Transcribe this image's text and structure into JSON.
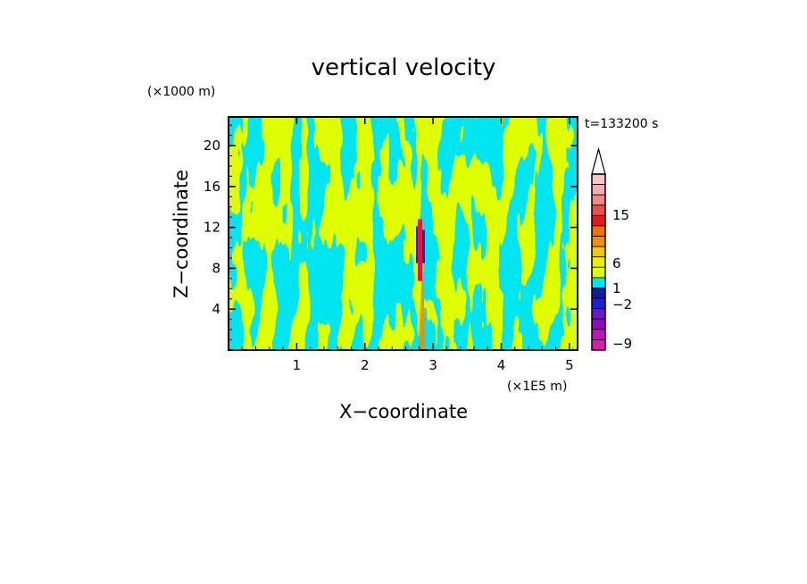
{
  "chart_data": {
    "type": "heatmap",
    "title": "vertical velocity",
    "xlabel": "X−coordinate",
    "ylabel": "Z−coordinate",
    "x_unit": "(×1E5 m)",
    "y_unit": "(×1000 m)",
    "time_label": "t=133200 s",
    "xlim": [
      0,
      5.12
    ],
    "ylim": [
      0,
      22.8
    ],
    "x_ticks": [
      1,
      2,
      3,
      4,
      5
    ],
    "y_ticks": [
      4,
      8,
      12,
      16,
      20
    ],
    "x_tick_labels": [
      "1",
      "2",
      "3",
      "4",
      "5"
    ],
    "y_tick_labels": [
      "4",
      "8",
      "12",
      "16",
      "20"
    ],
    "field_colors": {
      "positive": "#dfff00",
      "negative": "#00e5f0",
      "strong_negative": "#2020c8",
      "strong_positive": "#e8143c",
      "plume": "#f08c00"
    },
    "plume_x": 2.82,
    "plume_core": {
      "x": [
        2.75,
        2.88
      ],
      "z": [
        8.5,
        12.8
      ]
    },
    "colorbar": {
      "levels": [
        -9,
        -2,
        1,
        6,
        15
      ],
      "level_labels": [
        "−9",
        "−2",
        "1",
        "6",
        "15"
      ],
      "colors": [
        "#d81ea8",
        "#c014b4",
        "#8a10b8",
        "#6a18c8",
        "#2020d0",
        "#1818a0",
        "#00e5f0",
        "#dfff00",
        "#e8f000",
        "#f0c800",
        "#f09000",
        "#f07000",
        "#e81818",
        "#e85050",
        "#f08888",
        "#f4b0b0",
        "#f8c8c8"
      ],
      "extend_max": true
    }
  }
}
